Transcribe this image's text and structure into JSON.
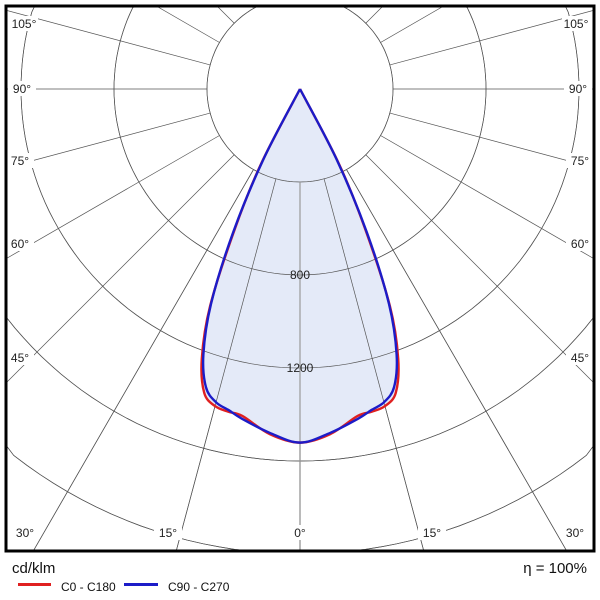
{
  "footer": {
    "unit": "cd/klm",
    "efficiency": "η = 100%"
  },
  "chart_data": {
    "type": "polar",
    "title": "",
    "unit": "cd/klm",
    "radial_ticks": [
      400,
      800,
      1200,
      1600,
      2000
    ],
    "radial_labels": [
      "800",
      "1200"
    ],
    "angle_labels": [
      "105°",
      "90°",
      "75°",
      "60°",
      "45°",
      "30°",
      "15°",
      "0°"
    ],
    "grid": true,
    "fill_color": "#e4eaf8",
    "series": [
      {
        "name": "C0 - C180",
        "color": "#e02020",
        "gamma": [
          0,
          5,
          10,
          12.5,
          15,
          17.5,
          20,
          22.5,
          25,
          27.5,
          30
        ],
        "values": [
          1521,
          1490,
          1428,
          1422,
          1412,
          1370,
          1235,
          1010,
          660,
          360,
          0
        ]
      },
      {
        "name": "C90 - C270",
        "color": "#1c1cc8",
        "gamma": [
          0,
          5,
          10,
          12.5,
          15,
          17.5,
          20,
          22.5,
          25,
          27.5,
          30
        ],
        "values": [
          1521,
          1485,
          1440,
          1415,
          1395,
          1345,
          1215,
          1000,
          680,
          340,
          0
        ]
      }
    ]
  }
}
